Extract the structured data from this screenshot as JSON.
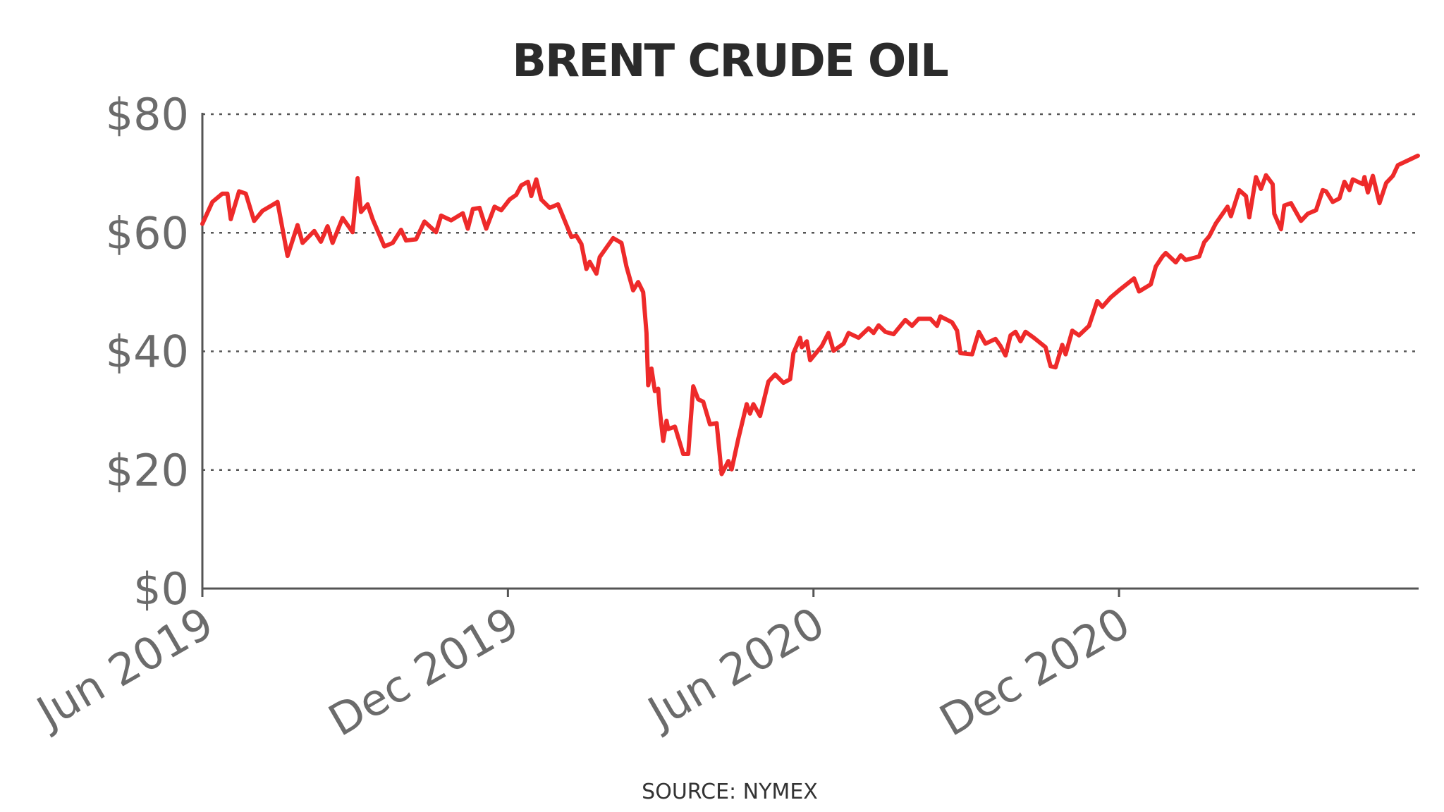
{
  "chart_data": {
    "type": "line",
    "title": "BRENT CRUDE OIL",
    "source": "SOURCE: NYMEX",
    "xlabel": "",
    "ylabel": "",
    "xlim": [
      "2019-06-01",
      "2021-05-29"
    ],
    "ylim": [
      0,
      80
    ],
    "y_ticks": [
      0,
      20,
      40,
      60,
      80
    ],
    "y_tick_labels": [
      "$0",
      "$20",
      "$40",
      "$60",
      "$80"
    ],
    "x_ticks": [
      "2019-06-01",
      "2019-12-01",
      "2020-06-01",
      "2020-12-01"
    ],
    "x_tick_labels": [
      "Jun 2019",
      "Dec 2019",
      "Jun 2020",
      "Dec 2020"
    ],
    "grid": "horizontal dotted",
    "legend": "none",
    "colors": {
      "line": "#ee2a2a",
      "grid": "#555555",
      "axis": "#555555",
      "text": "#6b6b6b",
      "title": "#2b2b2b"
    },
    "series": [
      {
        "x": [
          "2019-06-01",
          "2019-06-07",
          "2019-06-13",
          "2019-06-16",
          "2019-06-18",
          "2019-06-23",
          "2019-06-27",
          "2019-07-02",
          "2019-07-07",
          "2019-07-16",
          "2019-07-22",
          "2019-07-28",
          "2019-07-31",
          "2019-08-07",
          "2019-08-11",
          "2019-08-15",
          "2019-08-18",
          "2019-08-24",
          "2019-08-30",
          "2019-09-02",
          "2019-09-04",
          "2019-09-08",
          "2019-09-11",
          "2019-09-18",
          "2019-09-23",
          "2019-09-28",
          "2019-10-01",
          "2019-10-07",
          "2019-10-12",
          "2019-10-19",
          "2019-10-22",
          "2019-10-28",
          "2019-11-04",
          "2019-11-07",
          "2019-11-10",
          "2019-11-14",
          "2019-11-18",
          "2019-11-23",
          "2019-11-27",
          "2019-12-02",
          "2019-12-06",
          "2019-12-09",
          "2019-12-13",
          "2019-12-15",
          "2019-12-18",
          "2019-12-21",
          "2019-12-26",
          "2019-12-31",
          "2020-01-08",
          "2020-01-11",
          "2020-01-14",
          "2020-01-17",
          "2020-01-19",
          "2020-01-23",
          "2020-01-25",
          "2020-02-02",
          "2020-02-07",
          "2020-02-10",
          "2020-02-14",
          "2020-02-17",
          "2020-02-20",
          "2020-02-22",
          "2020-02-23",
          "2020-02-25",
          "2020-02-27",
          "2020-02-29",
          "2020-03-01",
          "2020-03-03",
          "2020-03-05",
          "2020-03-06",
          "2020-03-10",
          "2020-03-15",
          "2020-03-18",
          "2020-03-21",
          "2020-03-24",
          "2020-03-27",
          "2020-03-31",
          "2020-04-04",
          "2020-04-07",
          "2020-04-11",
          "2020-04-13",
          "2020-04-17",
          "2020-04-22",
          "2020-04-24",
          "2020-04-26",
          "2020-04-30",
          "2020-05-05",
          "2020-05-09",
          "2020-05-14",
          "2020-05-18",
          "2020-05-20",
          "2020-05-24",
          "2020-05-25",
          "2020-05-28",
          "2020-05-30",
          "2020-06-06",
          "2020-06-10",
          "2020-06-13",
          "2020-06-19",
          "2020-06-22",
          "2020-06-28",
          "2020-07-04",
          "2020-07-07",
          "2020-07-10",
          "2020-07-14",
          "2020-07-19",
          "2020-07-26",
          "2020-07-30",
          "2020-08-03",
          "2020-08-10",
          "2020-08-14",
          "2020-08-16",
          "2020-08-23",
          "2020-08-26",
          "2020-08-28",
          "2020-09-04",
          "2020-09-08",
          "2020-09-12",
          "2020-09-18",
          "2020-09-21",
          "2020-09-24",
          "2020-09-27",
          "2020-09-30",
          "2020-10-03",
          "2020-10-06",
          "2020-10-11",
          "2020-10-18",
          "2020-10-21",
          "2020-10-24",
          "2020-10-28",
          "2020-10-30",
          "2020-11-03",
          "2020-11-07",
          "2020-11-13",
          "2020-11-18",
          "2020-11-21",
          "2020-11-26",
          "2020-12-01",
          "2020-12-10",
          "2020-12-13",
          "2020-12-20",
          "2020-12-23",
          "2020-12-27",
          "2020-12-29",
          "2021-01-04",
          "2021-01-07",
          "2021-01-10",
          "2021-01-18",
          "2021-01-21",
          "2021-01-24",
          "2021-01-28",
          "2021-02-04",
          "2021-02-06",
          "2021-02-11",
          "2021-02-15",
          "2021-02-17",
          "2021-02-21",
          "2021-02-24",
          "2021-02-27",
          "2021-03-03",
          "2021-03-04",
          "2021-03-08",
          "2021-03-10",
          "2021-03-14",
          "2021-03-20",
          "2021-03-24",
          "2021-03-29",
          "2021-04-02",
          "2021-04-04",
          "2021-04-08",
          "2021-04-12",
          "2021-04-15",
          "2021-04-18",
          "2021-04-20",
          "2021-04-26",
          "2021-04-27",
          "2021-04-29",
          "2021-05-02",
          "2021-05-06",
          "2021-05-10",
          "2021-05-14",
          "2021-05-17",
          "2021-05-23",
          "2021-05-29"
        ],
        "y": [
          61.5,
          65.2,
          66.6,
          66.6,
          62.3,
          67,
          66.6,
          62,
          63.7,
          65.2,
          56.1,
          61.3,
          58.3,
          60.3,
          58.5,
          61.1,
          58.3,
          62.5,
          60.1,
          69.2,
          63.5,
          64.8,
          62.3,
          57.7,
          58.3,
          60.5,
          58.7,
          58.9,
          61.9,
          60.1,
          62.9,
          62.1,
          63.3,
          60.7,
          64,
          64.2,
          60.7,
          64.4,
          63.8,
          65.6,
          66.4,
          68,
          68.6,
          66.2,
          69,
          65.6,
          64.2,
          64.8,
          59.3,
          59.5,
          58.1,
          53.9,
          55.1,
          53.1,
          55.9,
          59.1,
          58.3,
          54.3,
          50.3,
          51.7,
          50,
          43.1,
          34.3,
          37.1,
          33.3,
          33.7,
          29.9,
          24.9,
          28.3,
          26.9,
          27.3,
          22.7,
          22.7,
          34.1,
          31.9,
          31.5,
          27.7,
          27.9,
          19.3,
          21.5,
          20.1,
          25.3,
          31.1,
          29.5,
          31.1,
          29.1,
          34.9,
          36.1,
          34.7,
          35.3,
          39.7,
          42.3,
          40.7,
          41.7,
          38.5,
          40.9,
          43.1,
          40.1,
          41.3,
          43.1,
          42.3,
          43.9,
          43.1,
          44.4,
          43.3,
          42.9,
          45.3,
          44.3,
          45.5,
          45.5,
          44.3,
          45.9,
          44.9,
          43.5,
          39.7,
          39.5,
          43.3,
          41.3,
          42.1,
          40.9,
          39.3,
          42.7,
          43.3,
          41.7,
          43.3,
          42.3,
          40.7,
          37.5,
          37.3,
          41.1,
          39.5,
          43.5,
          42.7,
          44.3,
          48.5,
          47.5,
          49.1,
          50.3,
          52.3,
          50.1,
          51.3,
          54.3,
          56,
          56.6,
          55,
          56.2,
          55.4,
          56,
          58.4,
          59.4,
          61.6,
          64.4,
          62.8,
          67.2,
          66.2,
          62.6,
          69.4,
          67.4,
          69.7,
          68.2,
          63.2,
          60.6,
          64.6,
          65,
          62,
          63.2,
          63.8,
          67.2,
          67,
          65.2,
          65.8,
          68.6,
          67.2,
          69,
          68.2,
          69.4,
          66.8,
          69.6,
          65,
          68.4,
          69.6,
          71.4,
          72.2,
          73
        ]
      }
    ]
  }
}
